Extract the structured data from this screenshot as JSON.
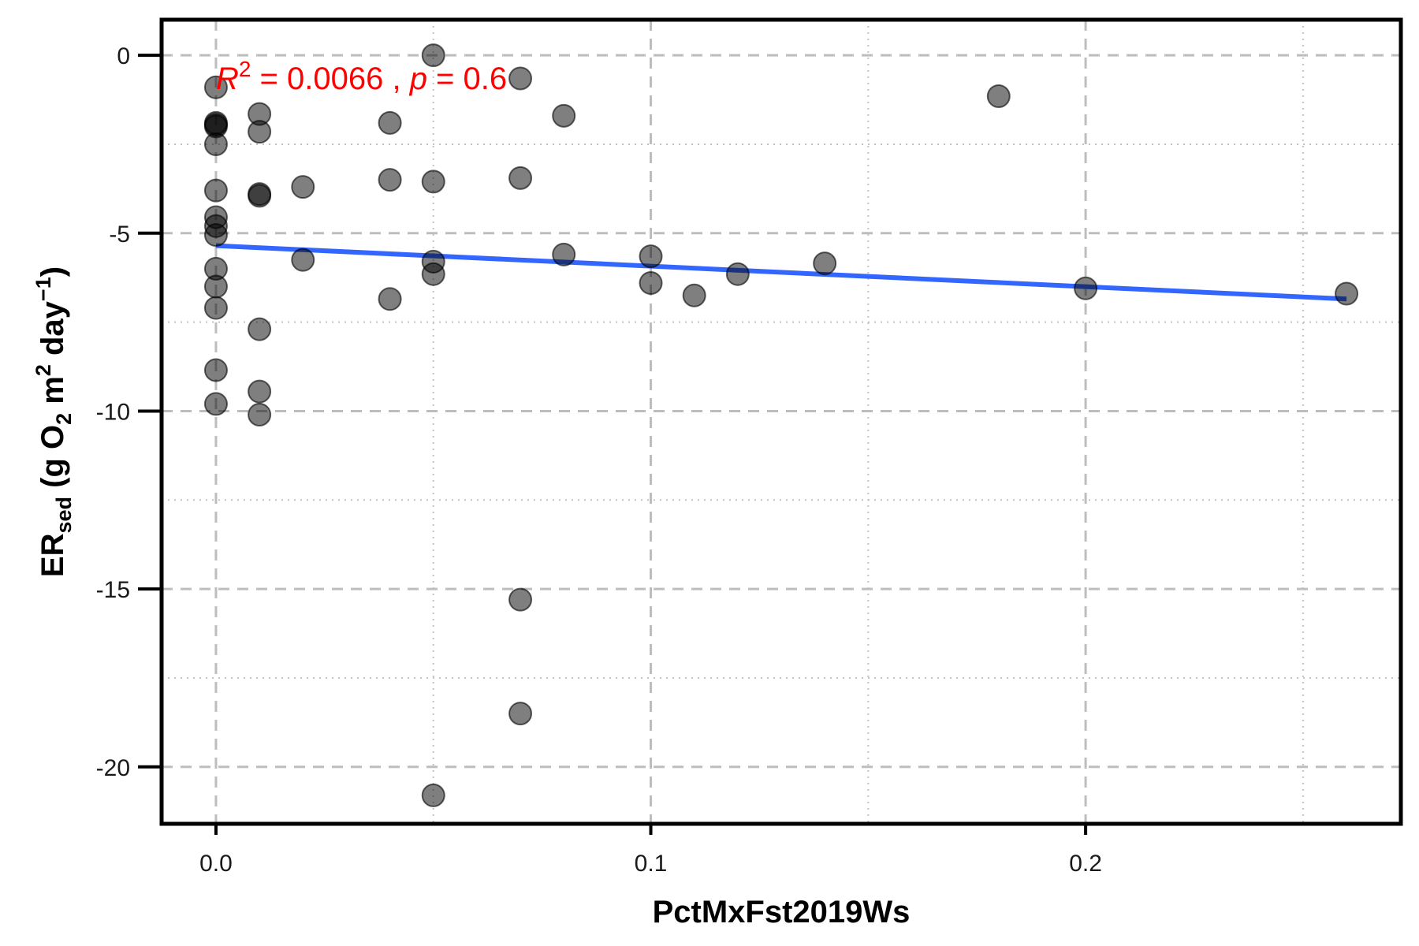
{
  "chart_data": {
    "type": "scatter",
    "xlabel": "PctMxFst2019Ws",
    "ylabel": {
      "prefix": "ER",
      "subscript": "sed",
      "units_open": " (g O",
      "units_o2_sub": "2",
      "units_m": " m",
      "units_m_sup": "2",
      "units_day": " day",
      "units_day_sup": "−1",
      "units_close": ")"
    },
    "xlim": [
      -0.0125,
      0.2725
    ],
    "ylim": [
      -21.6,
      1.0
    ],
    "x_major_ticks": [
      0.0,
      0.1,
      0.2
    ],
    "x_tick_labels": [
      "0.0",
      "0.1",
      "0.2"
    ],
    "x_minor_ticks": [
      0.05,
      0.15,
      0.25
    ],
    "y_major_ticks": [
      0,
      -5,
      -10,
      -15,
      -20
    ],
    "y_tick_labels": [
      "0",
      "-5",
      "-10",
      "-15",
      "-20"
    ],
    "y_minor_ticks": [
      -2.5,
      -7.5,
      -12.5,
      -17.5
    ],
    "grid": true,
    "annotation": {
      "r2_label": "R",
      "r2_sup": "2",
      "r2_value": " = 0.0066 , ",
      "p_label": "p",
      "p_value": " = 0.6",
      "color": "#ff0000"
    },
    "point_color": "#000000",
    "point_opacity": 0.5,
    "trend": {
      "x": [
        0.0,
        0.26
      ],
      "y": [
        -5.35,
        -6.85
      ],
      "color": "#3366ff"
    },
    "points": [
      {
        "x": 0.0,
        "y": -0.9
      },
      {
        "x": 0.0,
        "y": -1.9
      },
      {
        "x": 0.0,
        "y": -1.95
      },
      {
        "x": 0.0,
        "y": -2.0
      },
      {
        "x": 0.0,
        "y": -2.5
      },
      {
        "x": 0.0,
        "y": -3.8
      },
      {
        "x": 0.0,
        "y": -4.55
      },
      {
        "x": 0.0,
        "y": -4.8
      },
      {
        "x": 0.0,
        "y": -5.05
      },
      {
        "x": 0.0,
        "y": -6.0
      },
      {
        "x": 0.0,
        "y": -6.5
      },
      {
        "x": 0.0,
        "y": -7.1
      },
      {
        "x": 0.0,
        "y": -8.85
      },
      {
        "x": 0.0,
        "y": -9.8
      },
      {
        "x": 0.01,
        "y": -1.65
      },
      {
        "x": 0.01,
        "y": -2.15
      },
      {
        "x": 0.01,
        "y": -3.9
      },
      {
        "x": 0.01,
        "y": -3.95
      },
      {
        "x": 0.01,
        "y": -7.7
      },
      {
        "x": 0.01,
        "y": -9.45
      },
      {
        "x": 0.01,
        "y": -10.1
      },
      {
        "x": 0.02,
        "y": -3.7
      },
      {
        "x": 0.02,
        "y": -5.75
      },
      {
        "x": 0.04,
        "y": -1.9
      },
      {
        "x": 0.04,
        "y": -3.5
      },
      {
        "x": 0.04,
        "y": -6.85
      },
      {
        "x": 0.05,
        "y": 0.0
      },
      {
        "x": 0.05,
        "y": -3.55
      },
      {
        "x": 0.05,
        "y": -5.8
      },
      {
        "x": 0.05,
        "y": -6.15
      },
      {
        "x": 0.05,
        "y": -20.8
      },
      {
        "x": 0.07,
        "y": -0.65
      },
      {
        "x": 0.07,
        "y": -3.45
      },
      {
        "x": 0.07,
        "y": -15.3
      },
      {
        "x": 0.07,
        "y": -18.5
      },
      {
        "x": 0.08,
        "y": -1.7
      },
      {
        "x": 0.08,
        "y": -5.6
      },
      {
        "x": 0.1,
        "y": -5.65
      },
      {
        "x": 0.1,
        "y": -6.4
      },
      {
        "x": 0.11,
        "y": -6.75
      },
      {
        "x": 0.12,
        "y": -6.15
      },
      {
        "x": 0.14,
        "y": -5.85
      },
      {
        "x": 0.18,
        "y": -1.15
      },
      {
        "x": 0.2,
        "y": -6.55
      },
      {
        "x": 0.26,
        "y": -6.7
      }
    ]
  }
}
